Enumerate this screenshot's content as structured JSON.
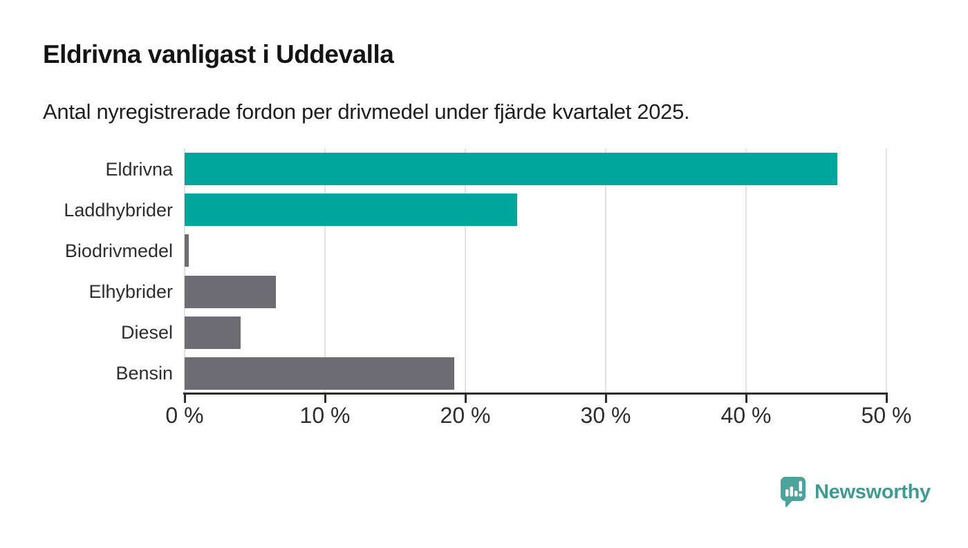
{
  "header": {
    "title": "Eldrivna vanligast i Uddevalla",
    "subtitle": "Antal nyregistrerade fordon per drivmedel under fjärde kvartalet 2025."
  },
  "chart_data": {
    "type": "bar",
    "orientation": "horizontal",
    "title": "Eldrivna vanligast i Uddevalla",
    "subtitle": "Antal nyregistrerade fordon per drivmedel under fjärde kvartalet 2025.",
    "categories": [
      "Eldrivna",
      "Laddhybrider",
      "Biodrivmedel",
      "Elhybrider",
      "Diesel",
      "Bensin"
    ],
    "values": [
      46.5,
      23.7,
      0.3,
      6.5,
      4.0,
      19.2
    ],
    "unit": "%",
    "xlim": [
      0,
      50
    ],
    "x_ticks": [
      0,
      10,
      20,
      30,
      40,
      50
    ],
    "x_tick_labels": [
      "0 %",
      "10 %",
      "20 %",
      "30 %",
      "40 %",
      "50 %"
    ],
    "grid": "vertical",
    "legend": "none",
    "bar_colors": [
      "#00a59c",
      "#00a59c",
      "#6c6c72",
      "#6c6c72",
      "#6c6c72",
      "#6c6c72"
    ],
    "highlight_color": "#00a59c",
    "default_color": "#6c6c72"
  },
  "style": {
    "grid_color": "#e2e2e2",
    "axis_color": "#2d2d2d",
    "label_color": "#2d2d2d"
  },
  "footer": {
    "brand": "Newsworthy",
    "brand_color": "#3f9a94",
    "icon": "bar-chart-speech-bubble-icon",
    "icon_color": "#4ba39b"
  }
}
